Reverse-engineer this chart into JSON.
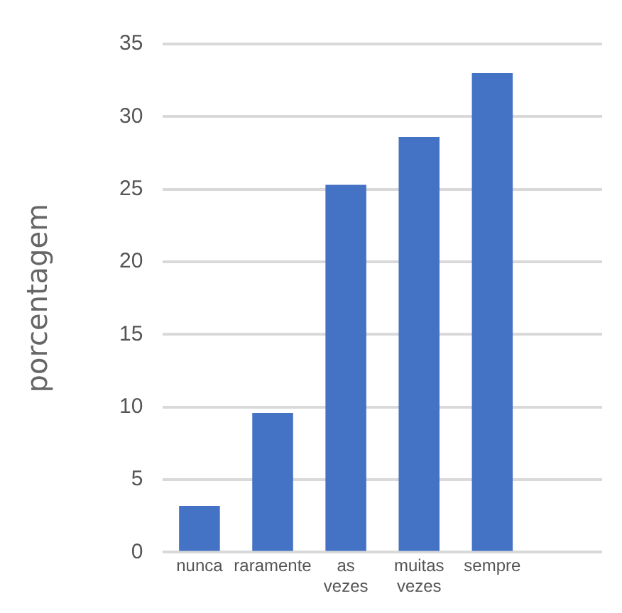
{
  "chart_data": {
    "type": "bar",
    "ylabel": "porcentagem",
    "categories": [
      "nunca",
      "raramente",
      "as vezes",
      "muitas vezes",
      "sempre",
      null
    ],
    "values": [
      3.2,
      9.6,
      25.3,
      28.6,
      33.0,
      null
    ],
    "color": "#4472c4",
    "ylim": [
      0,
      35
    ],
    "yticks": [
      0,
      5,
      10,
      15,
      20,
      25,
      30,
      35
    ],
    "grid": "y",
    "legend": false
  }
}
